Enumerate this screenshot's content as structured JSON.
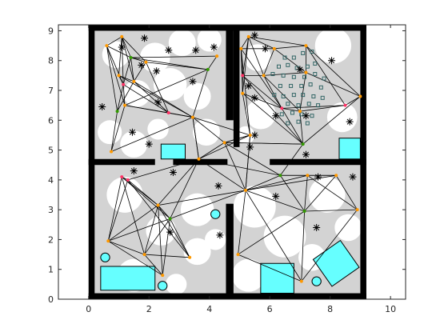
{
  "chart_data": {
    "type": "scatter",
    "title": "",
    "xlabel": "",
    "ylabel": "",
    "xlim": [
      -1,
      10.5
    ],
    "ylim": [
      0,
      9.2
    ],
    "xticks": [
      0,
      2,
      4,
      6,
      8,
      10
    ],
    "yticks": [
      0,
      1,
      2,
      3,
      4,
      5,
      6,
      7,
      8,
      9
    ],
    "xtick_labels": [
      "0",
      "2",
      "4",
      "6",
      "8",
      "10"
    ],
    "ytick_labels": [
      "0",
      "1",
      "2",
      "3",
      "4",
      "5",
      "6",
      "7",
      "8",
      "9"
    ],
    "grid": false,
    "legend": "none",
    "colors": {
      "wall": "#000000",
      "free_space": "#d3d3d3",
      "clearance": "#ffffff",
      "obstacle": "#66ffff",
      "edge": "#000000",
      "node_orange": "#ff9900",
      "node_green": "#339900",
      "node_red": "#ff3366",
      "marker": "#000000",
      "small_square": "#336666"
    },
    "walls": [
      [
        0,
        0,
        0.2,
        9.2
      ],
      [
        0,
        9,
        9.2,
        0.2
      ],
      [
        9,
        0,
        0.2,
        9.2
      ],
      [
        0,
        0,
        9.2,
        0.2
      ],
      [
        0,
        4.5,
        2.2,
        0.2
      ],
      [
        2.8,
        4.5,
        1.8,
        0.2
      ],
      [
        6.0,
        4.5,
        3.2,
        0.2
      ],
      [
        4.55,
        6.0,
        0.25,
        3.2
      ],
      [
        4.55,
        0,
        0.25,
        3.2
      ],
      [
        4.8,
        5.1,
        0.2,
        4.1
      ]
    ],
    "obstacles": {
      "rects": [
        [
          0.4,
          0.3,
          1.8,
          0.8
        ],
        [
          5.7,
          0.2,
          1.1,
          1.0
        ],
        [
          2.4,
          4.7,
          0.8,
          0.5
        ],
        [
          8.3,
          4.7,
          0.7,
          0.7
        ]
      ],
      "rotated_rects": [
        {
          "cx": 8.2,
          "cy": 1.2,
          "w": 1.1,
          "h": 1.1,
          "angle": 35
        }
      ],
      "circles": [
        [
          0.55,
          1.4,
          0.15
        ],
        [
          2.45,
          0.45,
          0.15
        ],
        [
          4.2,
          2.85,
          0.15
        ],
        [
          7.55,
          0.6,
          0.15
        ]
      ]
    },
    "nodes": [
      [
        1.1,
        8.8
      ],
      [
        0.6,
        8.5
      ],
      [
        1.4,
        8.1
      ],
      [
        1.9,
        7.95
      ],
      [
        1.15,
        7.2
      ],
      [
        1.0,
        7.5
      ],
      [
        1.5,
        7.3
      ],
      [
        0.95,
        6.3
      ],
      [
        1.2,
        6.5
      ],
      [
        2.65,
        6.25
      ],
      [
        3.45,
        6.1
      ],
      [
        3.95,
        7.7
      ],
      [
        4.25,
        8.15
      ],
      [
        0.75,
        4.95
      ],
      [
        5.3,
        8.8
      ],
      [
        5.05,
        8.4
      ],
      [
        6.15,
        8.4
      ],
      [
        7.2,
        8.5
      ],
      [
        5.1,
        7.5
      ],
      [
        5.8,
        7.5
      ],
      [
        7.2,
        7.6
      ],
      [
        5.1,
        6.9
      ],
      [
        6.4,
        6.4
      ],
      [
        7.0,
        6.3
      ],
      [
        8.5,
        6.5
      ],
      [
        9.0,
        6.8
      ],
      [
        7.1,
        5.2
      ],
      [
        5.35,
        5.5
      ],
      [
        3.65,
        4.7
      ],
      [
        4.5,
        5.25
      ],
      [
        1.1,
        4.1
      ],
      [
        1.3,
        4.0
      ],
      [
        2.3,
        3.15
      ],
      [
        2.7,
        2.7
      ],
      [
        3.35,
        1.4
      ],
      [
        0.65,
        1.95
      ],
      [
        1.85,
        1.5
      ],
      [
        2.45,
        0.8
      ],
      [
        5.2,
        3.65
      ],
      [
        6.35,
        4.15
      ],
      [
        7.25,
        4.15
      ],
      [
        8.2,
        4.15
      ],
      [
        7.15,
        2.95
      ],
      [
        8.9,
        3.0
      ],
      [
        4.95,
        1.5
      ],
      [
        7.05,
        0.6
      ]
    ],
    "node_colors": [
      "orange",
      "orange",
      "green",
      "orange",
      "red",
      "orange",
      "orange",
      "green",
      "orange",
      "red",
      "orange",
      "green",
      "orange",
      "orange",
      "orange",
      "orange",
      "orange",
      "orange",
      "red",
      "orange",
      "orange",
      "orange",
      "red",
      "orange",
      "red",
      "orange",
      "green",
      "orange",
      "orange",
      "orange",
      "red",
      "red",
      "orange",
      "green",
      "orange",
      "orange",
      "orange",
      "orange",
      "orange",
      "green",
      "orange",
      "orange",
      "green",
      "orange",
      "orange",
      "orange"
    ],
    "edges": [
      [
        0,
        1
      ],
      [
        0,
        2
      ],
      [
        0,
        3
      ],
      [
        0,
        4
      ],
      [
        0,
        5
      ],
      [
        0,
        6
      ],
      [
        1,
        2
      ],
      [
        1,
        4
      ],
      [
        1,
        7
      ],
      [
        1,
        8
      ],
      [
        2,
        3
      ],
      [
        2,
        4
      ],
      [
        2,
        6
      ],
      [
        2,
        11
      ],
      [
        2,
        12
      ],
      [
        3,
        6
      ],
      [
        3,
        9
      ],
      [
        3,
        11
      ],
      [
        4,
        5
      ],
      [
        4,
        7
      ],
      [
        4,
        8
      ],
      [
        4,
        9
      ],
      [
        5,
        6
      ],
      [
        5,
        10
      ],
      [
        6,
        7
      ],
      [
        6,
        9
      ],
      [
        6,
        10
      ],
      [
        7,
        13
      ],
      [
        8,
        9
      ],
      [
        8,
        10
      ],
      [
        8,
        13
      ],
      [
        9,
        10
      ],
      [
        10,
        11
      ],
      [
        10,
        28
      ],
      [
        10,
        27
      ],
      [
        11,
        12
      ],
      [
        11,
        8
      ],
      [
        13,
        10
      ],
      [
        28,
        29
      ],
      [
        28,
        27
      ],
      [
        28,
        10
      ],
      [
        27,
        29
      ],
      [
        14,
        15
      ],
      [
        14,
        16
      ],
      [
        14,
        17
      ],
      [
        14,
        18
      ],
      [
        14,
        19
      ],
      [
        15,
        16
      ],
      [
        15,
        18
      ],
      [
        15,
        21
      ],
      [
        15,
        22
      ],
      [
        16,
        17
      ],
      [
        16,
        19
      ],
      [
        16,
        20
      ],
      [
        17,
        20
      ],
      [
        17,
        24
      ],
      [
        17,
        25
      ],
      [
        18,
        19
      ],
      [
        18,
        21
      ],
      [
        18,
        22
      ],
      [
        19,
        20
      ],
      [
        19,
        22
      ],
      [
        19,
        23
      ],
      [
        20,
        23
      ],
      [
        20,
        25
      ],
      [
        21,
        22
      ],
      [
        21,
        26
      ],
      [
        21,
        27
      ],
      [
        22,
        23
      ],
      [
        22,
        26
      ],
      [
        22,
        24
      ],
      [
        23,
        24
      ],
      [
        23,
        26
      ],
      [
        24,
        25
      ],
      [
        25,
        26
      ],
      [
        26,
        29
      ],
      [
        27,
        29
      ],
      [
        18,
        26
      ],
      [
        15,
        27
      ],
      [
        14,
        21
      ],
      [
        28,
        38
      ],
      [
        28,
        32
      ],
      [
        28,
        33
      ],
      [
        29,
        38
      ],
      [
        29,
        39
      ],
      [
        27,
        38
      ],
      [
        28,
        31
      ],
      [
        30,
        31
      ],
      [
        30,
        32
      ],
      [
        30,
        33
      ],
      [
        30,
        35
      ],
      [
        30,
        36
      ],
      [
        31,
        32
      ],
      [
        31,
        34
      ],
      [
        31,
        35
      ],
      [
        32,
        33
      ],
      [
        32,
        34
      ],
      [
        32,
        35
      ],
      [
        32,
        36
      ],
      [
        32,
        37
      ],
      [
        33,
        34
      ],
      [
        33,
        35
      ],
      [
        33,
        36
      ],
      [
        33,
        37
      ],
      [
        34,
        36
      ],
      [
        35,
        36
      ],
      [
        35,
        37
      ],
      [
        36,
        37
      ],
      [
        38,
        39
      ],
      [
        38,
        40
      ],
      [
        38,
        42
      ],
      [
        38,
        44
      ],
      [
        38,
        45
      ],
      [
        39,
        40
      ],
      [
        39,
        41
      ],
      [
        39,
        42
      ],
      [
        40,
        41
      ],
      [
        40,
        42
      ],
      [
        40,
        43
      ],
      [
        41,
        42
      ],
      [
        41,
        43
      ],
      [
        42,
        43
      ],
      [
        42,
        44
      ],
      [
        42,
        45
      ],
      [
        43,
        45
      ],
      [
        38,
        41
      ],
      [
        44,
        45
      ],
      [
        32,
        38
      ],
      [
        33,
        38
      ],
      [
        29,
        26
      ],
      [
        10,
        29
      ],
      [
        28,
        39
      ],
      [
        39,
        26
      ],
      [
        27,
        38
      ]
    ],
    "star_markers": [
      [
        1.1,
        8.45
      ],
      [
        1.85,
        8.75
      ],
      [
        2.65,
        8.35
      ],
      [
        3.55,
        8.35
      ],
      [
        4.15,
        8.45
      ],
      [
        2.25,
        7.65
      ],
      [
        3.45,
        7.3
      ],
      [
        1.75,
        7.85
      ],
      [
        2.3,
        6.6
      ],
      [
        0.45,
        6.45
      ],
      [
        1.45,
        5.6
      ],
      [
        2.0,
        5.2
      ],
      [
        5.5,
        8.85
      ],
      [
        5.85,
        8.4
      ],
      [
        7.0,
        7.7
      ],
      [
        8.05,
        8.0
      ],
      [
        5.3,
        7.15
      ],
      [
        5.5,
        6.75
      ],
      [
        6.2,
        6.15
      ],
      [
        7.2,
        6.15
      ],
      [
        8.65,
        5.95
      ],
      [
        5.35,
        5.1
      ],
      [
        7.2,
        4.85
      ],
      [
        1.5,
        4.3
      ],
      [
        2.8,
        4.25
      ],
      [
        4.3,
        3.8
      ],
      [
        6.2,
        3.45
      ],
      [
        7.6,
        4.1
      ],
      [
        8.75,
        4.1
      ],
      [
        2.7,
        2.25
      ],
      [
        4.35,
        2.15
      ],
      [
        7.55,
        2.4
      ],
      [
        5.5,
        5.5
      ]
    ],
    "square_markers": [
      [
        6.5,
        8.1
      ],
      [
        6.8,
        8.1
      ],
      [
        7.1,
        8.25
      ],
      [
        7.4,
        8.3
      ],
      [
        6.3,
        7.8
      ],
      [
        6.6,
        7.85
      ],
      [
        6.9,
        7.75
      ],
      [
        7.25,
        7.8
      ],
      [
        7.5,
        7.9
      ],
      [
        6.1,
        7.55
      ],
      [
        6.45,
        7.5
      ],
      [
        6.8,
        7.45
      ],
      [
        7.15,
        7.45
      ],
      [
        7.5,
        7.55
      ],
      [
        7.8,
        7.4
      ],
      [
        6.35,
        7.15
      ],
      [
        6.7,
        7.15
      ],
      [
        7.05,
        7.15
      ],
      [
        7.35,
        7.2
      ],
      [
        7.7,
        7.1
      ],
      [
        6.15,
        6.85
      ],
      [
        6.45,
        6.8
      ],
      [
        6.8,
        6.85
      ],
      [
        7.1,
        6.85
      ],
      [
        7.45,
        6.8
      ],
      [
        7.75,
        6.75
      ],
      [
        6.6,
        6.55
      ],
      [
        6.95,
        6.5
      ],
      [
        7.3,
        6.55
      ],
      [
        7.6,
        6.5
      ],
      [
        6.4,
        6.2
      ],
      [
        6.75,
        6.25
      ],
      [
        7.05,
        6.2
      ],
      [
        7.4,
        6.15
      ],
      [
        6.6,
        5.9
      ],
      [
        6.95,
        5.95
      ],
      [
        7.25,
        5.9
      ]
    ],
    "clearance_circles": [
      [
        0.9,
        8.2,
        0.45
      ],
      [
        2.2,
        8.1,
        0.5
      ],
      [
        3.1,
        8.6,
        0.45
      ],
      [
        4.0,
        8.7,
        0.4
      ],
      [
        1.6,
        6.9,
        0.45
      ],
      [
        2.7,
        7.2,
        0.55
      ],
      [
        3.6,
        6.8,
        0.45
      ],
      [
        0.7,
        5.6,
        0.4
      ],
      [
        1.5,
        5.2,
        0.45
      ],
      [
        2.3,
        5.7,
        0.35
      ],
      [
        3.9,
        5.6,
        0.45
      ],
      [
        5.6,
        8.1,
        0.45
      ],
      [
        8.1,
        8.5,
        0.6
      ],
      [
        5.7,
        6.2,
        0.5
      ],
      [
        8.4,
        6.1,
        0.5
      ],
      [
        5.2,
        5.5,
        0.3
      ],
      [
        1.2,
        3.5,
        0.6
      ],
      [
        2.4,
        2.3,
        0.5
      ],
      [
        3.6,
        3.0,
        0.55
      ],
      [
        1.5,
        0.8,
        0.55
      ],
      [
        3.6,
        1.6,
        0.45
      ],
      [
        4.2,
        2.0,
        0.35
      ],
      [
        5.5,
        3.1,
        0.7
      ],
      [
        6.5,
        2.1,
        0.7
      ],
      [
        7.9,
        3.5,
        0.6
      ],
      [
        8.6,
        2.4,
        0.45
      ],
      [
        5.3,
        0.8,
        0.55
      ],
      [
        7.4,
        1.4,
        0.45
      ],
      [
        2.9,
        0.5,
        0.35
      ]
    ]
  }
}
